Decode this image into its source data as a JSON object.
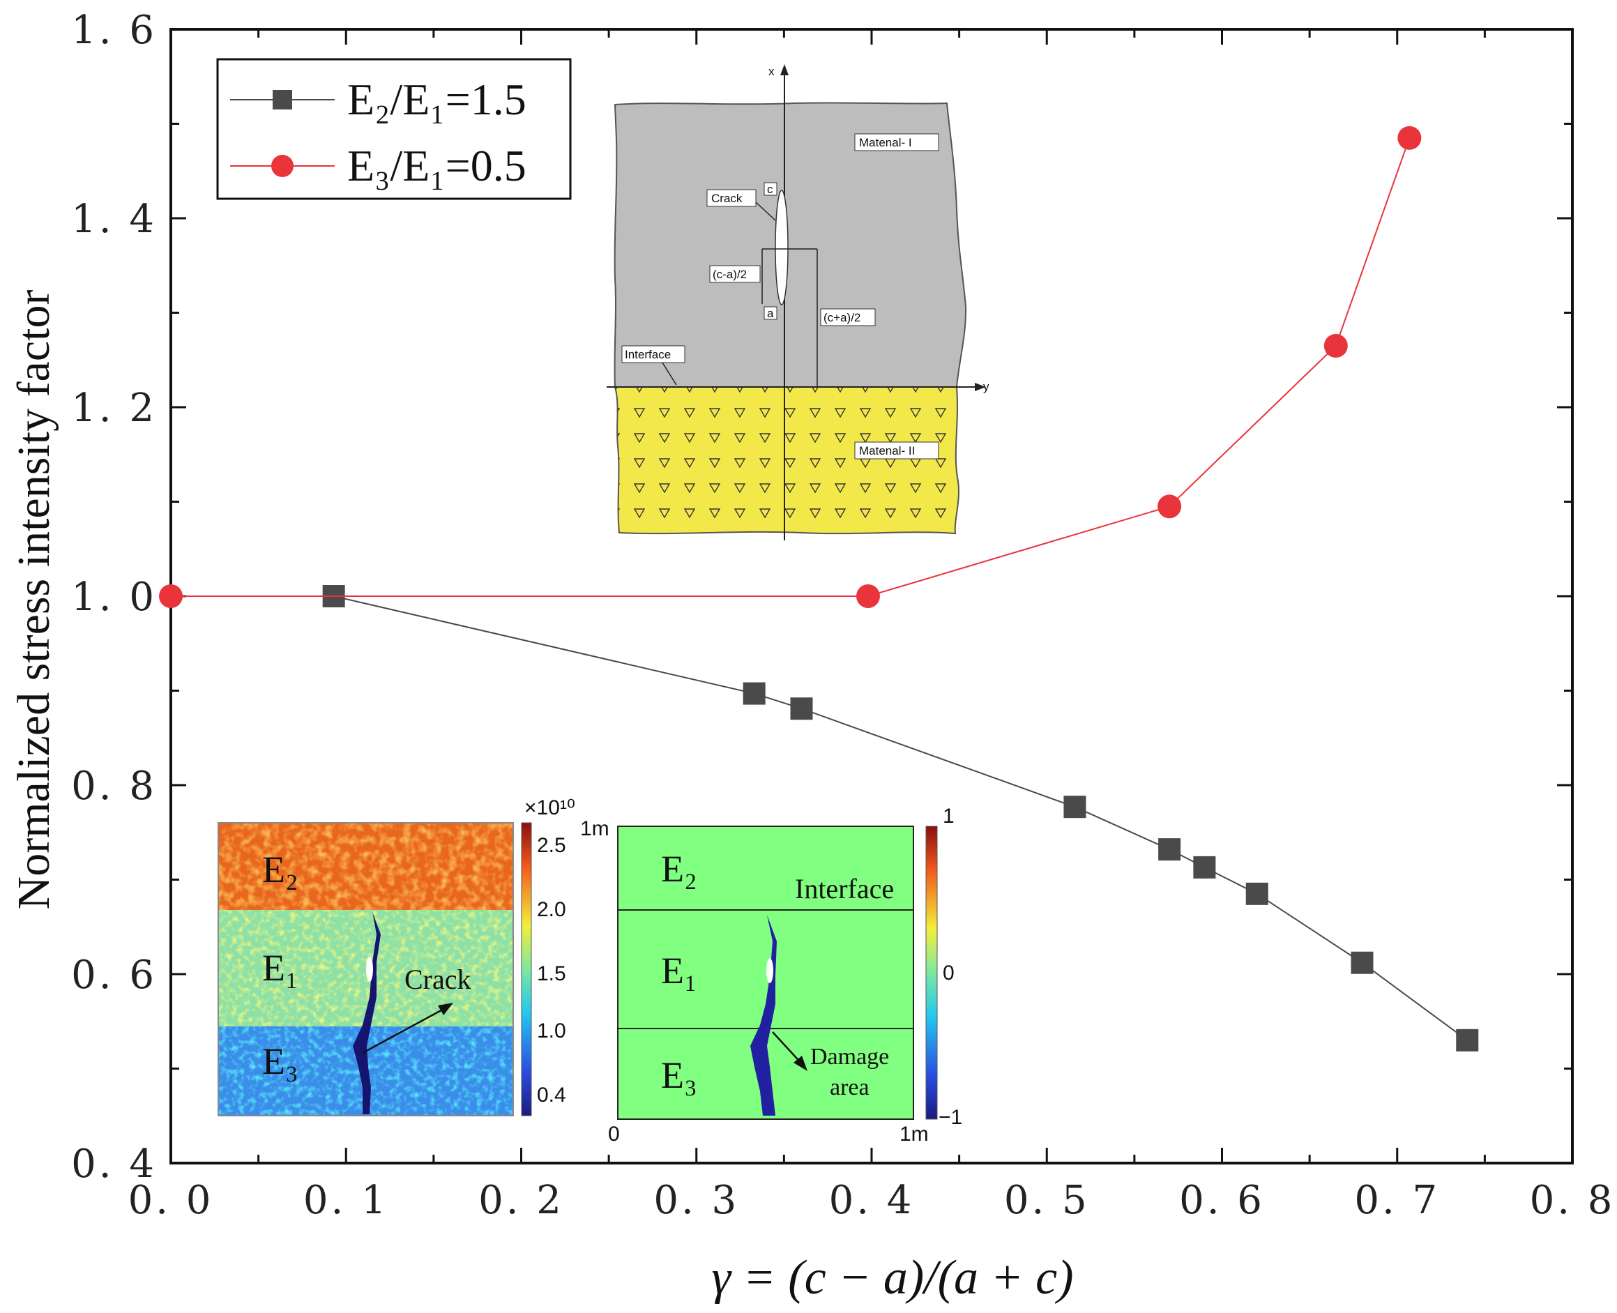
{
  "chart_data": {
    "type": "line",
    "title": "",
    "xlabel": "γ = (c − a)/(a + c)",
    "ylabel": "Normalized stress intensity factor",
    "xlim": [
      0.0,
      0.8
    ],
    "ylim": [
      0.4,
      1.6
    ],
    "x_ticks": [
      0.0,
      0.1,
      0.2,
      0.3,
      0.4,
      0.5,
      0.6,
      0.7,
      0.8
    ],
    "x_tick_labels": [
      "0. 0",
      "0. 1",
      "0. 2",
      "0. 3",
      "0. 4",
      "0. 5",
      "0. 6",
      "0. 7",
      "0. 8"
    ],
    "y_ticks": [
      0.4,
      0.6,
      0.8,
      1.0,
      1.2,
      1.4,
      1.6
    ],
    "y_tick_labels": [
      "0. 4",
      "0. 6",
      "0. 8",
      "1. 0",
      "1. 2",
      "1. 4",
      "1. 6"
    ],
    "legend_position": "top-left",
    "series": [
      {
        "name": "E₂/E₁=1.5",
        "color": "#4a4a4a",
        "marker": "square",
        "x": [
          0.093,
          0.333,
          0.36,
          0.516,
          0.57,
          0.59,
          0.62,
          0.68,
          0.74
        ],
        "y": [
          1.0,
          0.897,
          0.881,
          0.777,
          0.732,
          0.713,
          0.685,
          0.612,
          0.53
        ]
      },
      {
        "name": "E₃/E₁=0.5",
        "color": "#e8343a",
        "marker": "circle",
        "x": [
          0.0,
          0.398,
          0.57,
          0.665,
          0.707
        ],
        "y": [
          1.0,
          1.0,
          1.095,
          1.265,
          1.485
        ]
      }
    ]
  },
  "inset_geometry": {
    "axis_x": "x",
    "axis_y": "y",
    "material_1": "Matenal- I",
    "material_2": "Matenal- II",
    "crack": "Crack",
    "tip_c": "c",
    "tip_a": "a",
    "half_length": "(c-a)/2",
    "center_dist": "(c+a)/2",
    "interface": "Interface"
  },
  "inset_modulus": {
    "layers": [
      "E₂",
      "E₁",
      "E₃"
    ],
    "crack": "Crack",
    "colorbar_exponent": "×10¹⁰",
    "colorbar_ticks": [
      "2.5",
      "2.0",
      "1.5",
      "1.0",
      "0.4"
    ]
  },
  "inset_damage": {
    "layers": [
      "E₂",
      "E₁",
      "E₃"
    ],
    "interface": "Interface",
    "damage_area": [
      "Damage",
      "area"
    ],
    "axis_top": "1m",
    "axis_origin": "0",
    "axis_right": "1m",
    "colorbar_ticks": [
      "1",
      "0",
      "−1"
    ]
  }
}
